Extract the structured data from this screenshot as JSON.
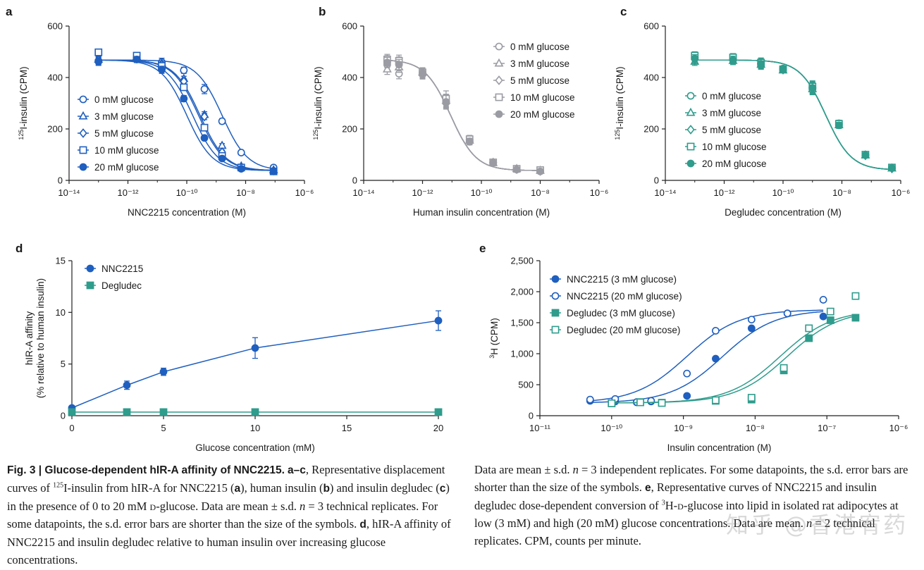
{
  "colors": {
    "blue": "#1f5fbf",
    "grey": "#9b9ca3",
    "teal": "#2f9c8c",
    "axis": "#222222"
  },
  "chart_data": [
    {
      "id": "a",
      "panel_label": "a",
      "type": "scatter",
      "color": "#1f5fbf",
      "xscale": "log",
      "xlim": [
        -14,
        -6
      ],
      "xticks": [
        -14,
        -12,
        -10,
        -8,
        -6
      ],
      "xtick_labels": [
        "10⁻¹⁴",
        "10⁻¹²",
        "10⁻¹⁰",
        "10⁻⁸",
        "10⁻⁶"
      ],
      "xlabel": "NNC2215 concentration (M)",
      "ylabel": "125I-insulin (CPM)",
      "ylabel_sup": "125",
      "ylabel_main": "I-insulin (CPM)",
      "ylim": [
        0,
        600
      ],
      "yticks": [
        0,
        200,
        400,
        600
      ],
      "ytick_labels": [
        "0",
        "200",
        "400",
        "600"
      ],
      "legend_position": "middle-left",
      "fit": {
        "top": 468,
        "bottom": 38
      },
      "series": [
        {
          "name": "0 mM glucose",
          "marker": "circle",
          "filled": false,
          "log_ec50": -8.8,
          "x": [
            -13,
            -11.7,
            -10.85,
            -10.1,
            -9.4,
            -8.8,
            -8.15,
            -7.05
          ],
          "y": [
            465,
            478,
            460,
            428,
            355,
            230,
            108,
            50
          ],
          "err": [
            15,
            15,
            15,
            12,
            18,
            10,
            8,
            5
          ]
        },
        {
          "name": "3 mM glucose",
          "marker": "triangle",
          "filled": false,
          "log_ec50": -9.55,
          "x": [
            -13,
            -11.7,
            -10.85,
            -10.1,
            -9.4,
            -8.8,
            -8.15,
            -7.05
          ],
          "y": [
            470,
            480,
            455,
            395,
            255,
            135,
            55,
            40
          ],
          "err": [
            12,
            10,
            10,
            10,
            12,
            8,
            5,
            4
          ]
        },
        {
          "name": "5 mM glucose",
          "marker": "diamond",
          "filled": false,
          "log_ec50": -9.6,
          "x": [
            -13,
            -11.7,
            -10.85,
            -10.1,
            -9.4,
            -8.8,
            -8.15,
            -7.05
          ],
          "y": [
            468,
            475,
            450,
            385,
            248,
            110,
            52,
            38
          ],
          "err": [
            12,
            10,
            10,
            10,
            12,
            8,
            5,
            4
          ]
        },
        {
          "name": "10 mM glucose",
          "marker": "square",
          "filled": false,
          "log_ec50": -9.8,
          "x": [
            -13,
            -11.7,
            -10.85,
            -10.1,
            -9.4,
            -8.8,
            -8.15,
            -7.05
          ],
          "y": [
            498,
            485,
            445,
            362,
            205,
            95,
            50,
            35
          ],
          "err": [
            10,
            10,
            10,
            10,
            12,
            6,
            4,
            3
          ]
        },
        {
          "name": "20 mM glucose",
          "marker": "circle",
          "filled": true,
          "log_ec50": -10.0,
          "x": [
            -13,
            -11.7,
            -10.85,
            -10.1,
            -9.4,
            -8.8,
            -8.15,
            -7.05
          ],
          "y": [
            462,
            470,
            430,
            318,
            165,
            85,
            45,
            35
          ],
          "err": [
            15,
            12,
            14,
            12,
            10,
            6,
            4,
            3
          ]
        }
      ]
    },
    {
      "id": "b",
      "panel_label": "b",
      "type": "scatter",
      "color": "#9b9ca3",
      "xscale": "log",
      "xlim": [
        -14,
        -6
      ],
      "xticks": [
        -14,
        -12,
        -10,
        -8,
        -6
      ],
      "xtick_labels": [
        "10⁻¹⁴",
        "10⁻¹²",
        "10⁻¹⁰",
        "10⁻⁸",
        "10⁻⁶"
      ],
      "xlabel": "Human insulin concentration (M)",
      "ylabel": "125I-insulin (CPM)",
      "ylabel_sup": "125",
      "ylabel_main": "I-insulin (CPM)",
      "ylim": [
        0,
        600
      ],
      "yticks": [
        0,
        200,
        400,
        600
      ],
      "ytick_labels": [
        "0",
        "200",
        "400",
        "600"
      ],
      "legend_position": "top-right",
      "fit": {
        "top": 470,
        "bottom": 38
      },
      "series": [
        {
          "name": "0 mM glucose",
          "marker": "circle",
          "filled": false,
          "log_ec50": -11.05,
          "x": [
            -13.2,
            -12.8,
            -12,
            -11.2,
            -10.4,
            -9.6,
            -8.8,
            -8
          ],
          "y": [
            450,
            415,
            412,
            302,
            150,
            70,
            45,
            35
          ],
          "err": [
            25,
            20,
            18,
            25,
            12,
            6,
            5,
            5
          ]
        },
        {
          "name": "3 mM glucose",
          "marker": "triangle",
          "filled": false,
          "log_ec50": -11.05,
          "x": [
            -13.2,
            -12.8,
            -12,
            -11.2,
            -10.4,
            -9.6,
            -8.8,
            -8
          ],
          "y": [
            432,
            440,
            420,
            310,
            155,
            68,
            45,
            38
          ],
          "err": [
            20,
            20,
            18,
            25,
            12,
            6,
            5,
            5
          ]
        },
        {
          "name": "5 mM glucose",
          "marker": "diamond",
          "filled": false,
          "log_ec50": -11.05,
          "x": [
            -13.2,
            -12.8,
            -12,
            -11.2,
            -10.4,
            -9.6,
            -8.8,
            -8
          ],
          "y": [
            465,
            460,
            415,
            308,
            158,
            70,
            43,
            36
          ],
          "err": [
            20,
            20,
            18,
            25,
            12,
            6,
            5,
            5
          ]
        },
        {
          "name": "10 mM glucose",
          "marker": "square",
          "filled": false,
          "log_ec50": -11.05,
          "x": [
            -13.2,
            -12.8,
            -12,
            -11.2,
            -10.4,
            -9.6,
            -8.8,
            -8
          ],
          "y": [
            470,
            465,
            420,
            318,
            160,
            70,
            45,
            40
          ],
          "err": [
            20,
            22,
            18,
            30,
            15,
            6,
            5,
            10
          ]
        },
        {
          "name": "20 mM glucose",
          "marker": "circle",
          "filled": true,
          "log_ec50": -11.05,
          "x": [
            -13.2,
            -12.8,
            -12,
            -11.2,
            -10.4,
            -9.6,
            -8.8,
            -8
          ],
          "y": [
            458,
            450,
            418,
            305,
            152,
            68,
            42,
            35
          ],
          "err": [
            20,
            20,
            18,
            25,
            12,
            6,
            5,
            5
          ]
        }
      ]
    },
    {
      "id": "c",
      "panel_label": "c",
      "type": "scatter",
      "color": "#2f9c8c",
      "xscale": "log",
      "xlim": [
        -14,
        -6
      ],
      "xticks": [
        -14,
        -12,
        -10,
        -8,
        -6
      ],
      "xtick_labels": [
        "10⁻¹⁴",
        "10⁻¹²",
        "10⁻¹⁰",
        "10⁻⁸",
        "10⁻⁶"
      ],
      "xlabel": "Degludec concentration (M)",
      "ylabel": "125I-insulin (CPM)",
      "ylabel_sup": "125",
      "ylabel_main": "I-insulin (CPM)",
      "ylim": [
        0,
        600
      ],
      "yticks": [
        0,
        200,
        400,
        600
      ],
      "ytick_labels": [
        "0",
        "200",
        "400",
        "600"
      ],
      "legend_position": "middle-left",
      "fit": {
        "top": 468,
        "bottom": 40
      },
      "series": [
        {
          "name": "0 mM glucose",
          "marker": "circle",
          "filled": false,
          "log_ec50": -8.55,
          "x": [
            -13,
            -11.7,
            -10.75,
            -10,
            -9,
            -8.1,
            -7.2,
            -6.3
          ],
          "y": [
            478,
            470,
            455,
            435,
            362,
            222,
            100,
            48
          ],
          "err": [
            15,
            15,
            18,
            10,
            22,
            12,
            8,
            8
          ]
        },
        {
          "name": "3 mM glucose",
          "marker": "triangle",
          "filled": false,
          "log_ec50": -8.55,
          "x": [
            -13,
            -11.7,
            -10.75,
            -10,
            -9,
            -8.1,
            -7.2,
            -6.3
          ],
          "y": [
            462,
            465,
            450,
            428,
            355,
            215,
            98,
            47
          ],
          "err": [
            15,
            15,
            18,
            10,
            22,
            12,
            8,
            8
          ]
        },
        {
          "name": "5 mM glucose",
          "marker": "diamond",
          "filled": false,
          "log_ec50": -8.55,
          "x": [
            -13,
            -11.7,
            -10.75,
            -10,
            -9,
            -8.1,
            -7.2,
            -6.3
          ],
          "y": [
            470,
            472,
            452,
            430,
            358,
            218,
            97,
            46
          ],
          "err": [
            15,
            15,
            18,
            10,
            22,
            12,
            8,
            8
          ]
        },
        {
          "name": "10 mM glucose",
          "marker": "square",
          "filled": false,
          "log_ec50": -8.55,
          "x": [
            -13,
            -11.7,
            -10.75,
            -10,
            -9,
            -8.1,
            -7.2,
            -6.3
          ],
          "y": [
            485,
            478,
            458,
            432,
            365,
            220,
            100,
            50
          ],
          "err": [
            15,
            15,
            18,
            10,
            22,
            12,
            8,
            8
          ]
        },
        {
          "name": "20 mM glucose",
          "marker": "circle",
          "filled": true,
          "log_ec50": -8.55,
          "x": [
            -13,
            -11.7,
            -10.75,
            -10,
            -9,
            -8.1,
            -7.2,
            -6.3
          ],
          "y": [
            474,
            468,
            453,
            432,
            360,
            214,
            98,
            48
          ],
          "err": [
            15,
            15,
            18,
            10,
            22,
            12,
            8,
            8
          ]
        }
      ]
    },
    {
      "id": "d",
      "panel_label": "d",
      "type": "line",
      "xscale": "linear",
      "xlim": [
        0,
        20
      ],
      "xticks": [
        0,
        5,
        10,
        15,
        20
      ],
      "xtick_labels": [
        "0",
        "5",
        "10",
        "15",
        "20"
      ],
      "xlabel": "Glucose concentration (mM)",
      "ylabel": "hIR-A affinity",
      "ylabel2": "(% relative to human insulin)",
      "ylim": [
        0,
        15
      ],
      "yticks": [
        0,
        5,
        10,
        15
      ],
      "ytick_labels": [
        "0",
        "5",
        "10",
        "15"
      ],
      "legend_position": "top-left",
      "series": [
        {
          "name": "NNC2215",
          "marker": "circle",
          "filled": true,
          "color": "#1f5fbf",
          "x": [
            0,
            3,
            5,
            10,
            20
          ],
          "y": [
            0.75,
            2.95,
            4.25,
            6.55,
            9.2
          ],
          "err": [
            0.15,
            0.4,
            0.35,
            1.0,
            0.95
          ]
        },
        {
          "name": "Degludec",
          "marker": "square",
          "filled": true,
          "color": "#2f9c8c",
          "x": [
            0,
            3,
            5,
            10,
            20
          ],
          "y": [
            0.35,
            0.35,
            0.35,
            0.35,
            0.35
          ],
          "err": [
            0,
            0,
            0,
            0,
            0
          ]
        }
      ]
    },
    {
      "id": "e",
      "panel_label": "e",
      "type": "scatter",
      "xscale": "log",
      "xlim": [
        -11,
        -6
      ],
      "xticks": [
        -11,
        -10,
        -9,
        -8,
        -7,
        -6
      ],
      "xtick_labels": [
        "10⁻¹¹",
        "10⁻¹⁰",
        "10⁻⁹",
        "10⁻⁸",
        "10⁻⁷",
        "10⁻⁶"
      ],
      "xlabel": "Insulin concentration (M)",
      "ylabel": "3H (CPM)",
      "ylabel_sup": "3",
      "ylabel_main": "H (CPM)",
      "ylim": [
        0,
        2500
      ],
      "yticks": [
        0,
        500,
        1000,
        1500,
        2000,
        2500
      ],
      "ytick_labels": [
        "0",
        "500",
        "1,000",
        "1,500",
        "2,000",
        "2,500"
      ],
      "legend_position": "top-left",
      "fit": {
        "top": 1710,
        "bottom": 205
      },
      "series": [
        {
          "name": "NNC2215 (3 mM glucose)",
          "marker": "circle",
          "filled": true,
          "color": "#1f5fbf",
          "log_ec50": -8.45,
          "x": [
            -10.3,
            -9.95,
            -9.65,
            -9.45,
            -8.95,
            -8.55,
            -8.05,
            -7.55,
            -7.05
          ],
          "y": [
            240,
            230,
            215,
            230,
            320,
            920,
            1410,
            1650,
            1600
          ]
        },
        {
          "name": "NNC2215 (20 mM glucose)",
          "marker": "circle",
          "filled": false,
          "color": "#1f5fbf",
          "log_ec50": -8.95,
          "x": [
            -10.3,
            -9.95,
            -9.65,
            -9.45,
            -8.95,
            -8.55,
            -8.05,
            -7.55,
            -7.05
          ],
          "y": [
            260,
            270,
            220,
            240,
            680,
            1370,
            1550,
            1650,
            1870
          ]
        },
        {
          "name": "Degludec (3 mM glucose)",
          "marker": "square",
          "filled": true,
          "color": "#2f9c8c",
          "log_ec50": -7.65,
          "x": [
            -10,
            -9.6,
            -9.3,
            -8.55,
            -8.05,
            -7.6,
            -7.25,
            -6.95,
            -6.6
          ],
          "y": [
            200,
            220,
            210,
            240,
            260,
            730,
            1250,
            1540,
            1580
          ]
        },
        {
          "name": "Degludec (20 mM glucose)",
          "marker": "square",
          "filled": false,
          "color": "#2f9c8c",
          "log_ec50": -7.55,
          "x": [
            -10,
            -9.6,
            -9.3,
            -8.55,
            -8.05,
            -7.6,
            -7.25,
            -6.95,
            -6.6
          ],
          "y": [
            200,
            215,
            205,
            250,
            290,
            770,
            1410,
            1680,
            1930
          ]
        }
      ]
    }
  ],
  "caption_left": {
    "fig_label": "Fig. 3 | Glucose-dependent hIR-A affinity of NNC2215.",
    "ac_label": "a–c",
    "t1": ", Representative displacement curves of ",
    "sup125": "125",
    "t2": "I-insulin from hIR-A for NNC2215 (",
    "a": "a",
    "t3": "), human insulin (",
    "b": "b",
    "t4": ") and insulin degludec (",
    "c": "c",
    "t5": ") in the presence of 0 to 20 mM ",
    "dglc": "d",
    "t6": "-glucose. Data are mean ± s.d. ",
    "n": "n",
    "t7": " = 3 technical replicates. For some datapoints, the s.d. error bars are shorter than the size of the symbols. ",
    "d": "d",
    "t8": ", hIR-A affinity of NNC2215 and insulin degludec relative to human insulin over increasing glucose concentrations."
  },
  "caption_right": {
    "t1": "Data are mean ± s.d. ",
    "n1": "n",
    "t2": " = 3 independent replicates. For some datapoints, the s.d. error bars are shorter than the size of the symbols. ",
    "e": "e",
    "t3": ", Representative curves of NNC2215 and insulin degludec dose-dependent conversion of ",
    "sup3": "3",
    "t4": "H-",
    "dglc": "d",
    "t5": "-glucose into lipid in isolated rat adipocytes at low (3 mM) and high (20 mM) glucose concentrations. Data are mean. ",
    "n2": "n",
    "t6": " = 2 technical replicates. CPM, counts per minute."
  },
  "watermark": "知乎 @香港宥药"
}
